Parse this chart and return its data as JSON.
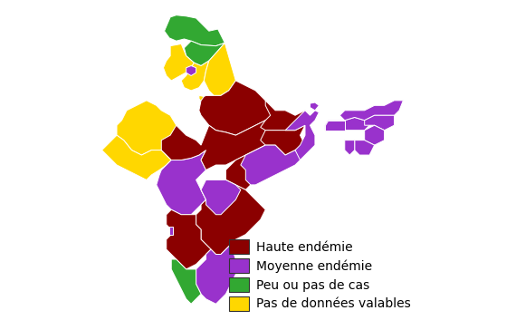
{
  "colors": {
    "high": "#8B0000",
    "medium": "#9932CC",
    "low": "#32A832",
    "no_data": "#FFD700"
  },
  "legend_items": [
    {
      "label": "Haute endémie",
      "color": "#8B0000"
    },
    {
      "label": "Moyenne endémie",
      "color": "#9932CC"
    },
    {
      "label": "Peu ou pas de cas",
      "color": "#32A832"
    },
    {
      "label": "Pas de données valables",
      "color": "#FFD700"
    }
  ],
  "bg_color": "#FFFFFF",
  "legend_fontsize": 10,
  "edge_color": "#FFFFFF",
  "edge_width": 0.7
}
